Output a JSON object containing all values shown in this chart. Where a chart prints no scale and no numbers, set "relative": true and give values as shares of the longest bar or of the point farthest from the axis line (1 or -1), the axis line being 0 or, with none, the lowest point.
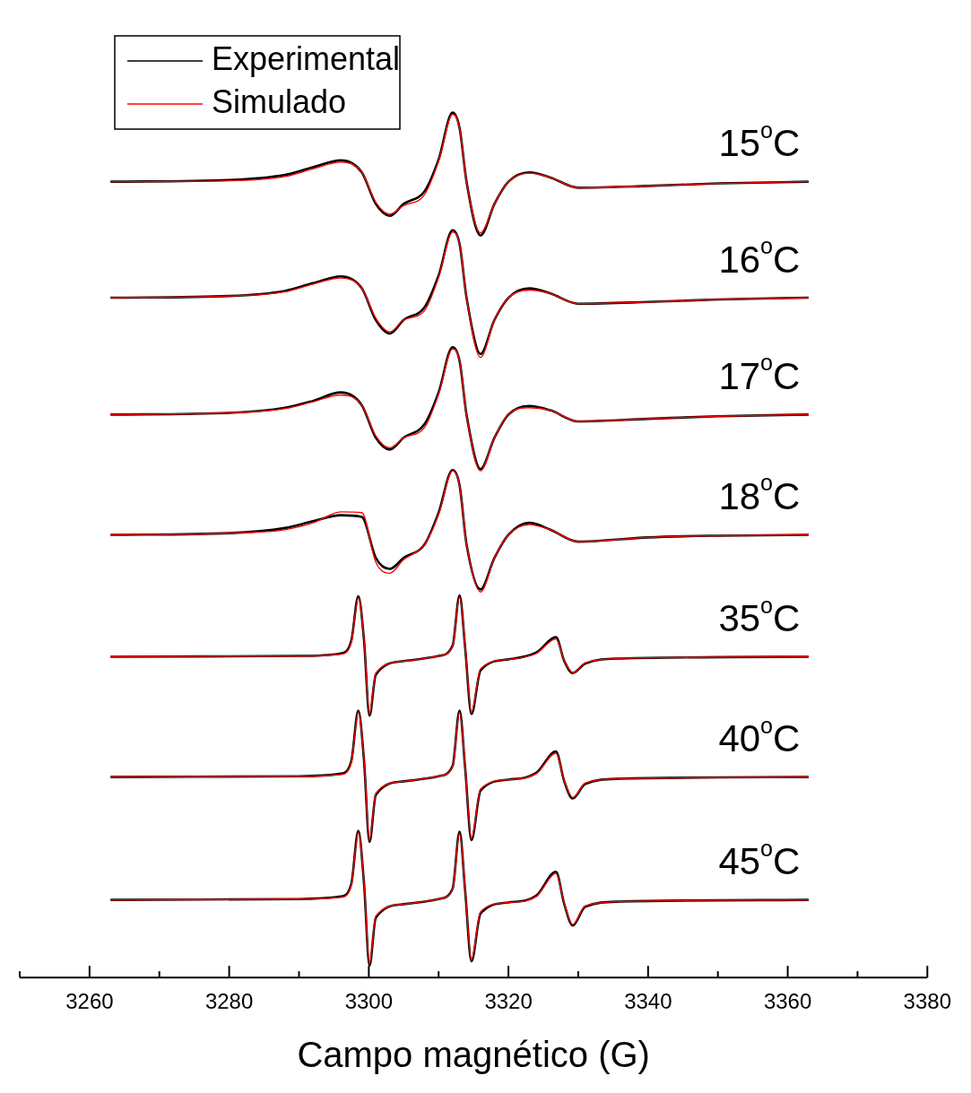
{
  "chart_data": {
    "type": "line",
    "xlabel": "Campo magnético (G)",
    "relative": true,
    "xlim": [
      3250,
      3380
    ],
    "xticks": [
      {
        "value": 3250,
        "label": null
      },
      3260,
      {
        "value": 3270,
        "label": null
      },
      3280,
      {
        "value": 3290,
        "label": null
      },
      3300,
      {
        "value": 3310,
        "label": null
      },
      3320,
      {
        "value": 3330,
        "label": null
      },
      3340,
      {
        "value": 3350,
        "label": null
      },
      3360,
      {
        "value": 3370,
        "label": null
      },
      3380
    ],
    "grid": false,
    "legend": "top left",
    "marker": "none",
    "line_style": "solid",
    "series": [
      {
        "name": "Experimental",
        "color": "#000000",
        "x": [
          3263,
          3280,
          3288,
          3292,
          3296,
          3299,
          3301,
          3303,
          3305,
          3308,
          3310,
          3312,
          3313,
          3314,
          3316,
          3318,
          3320,
          3323,
          3326,
          3330,
          3340,
          3350,
          3363
        ],
        "values": [
          0.919,
          0.921,
          0.927,
          0.936,
          0.944,
          0.93,
          0.893,
          0.879,
          0.893,
          0.908,
          0.945,
          1.0,
          0.982,
          0.919,
          0.856,
          0.893,
          0.919,
          0.93,
          0.924,
          0.912,
          0.914,
          0.917,
          0.919
        ]
      },
      {
        "name": "Simulado",
        "color": "#ff0000",
        "x": [
          3263,
          3280,
          3288,
          3292,
          3296,
          3299,
          3301,
          3303,
          3305,
          3308,
          3310,
          3312,
          3313,
          3314,
          3316,
          3318,
          3320,
          3323,
          3326,
          3330,
          3340,
          3350,
          3363
        ],
        "values": [
          0.919,
          0.92,
          0.925,
          0.934,
          0.942,
          0.93,
          0.895,
          0.881,
          0.891,
          0.904,
          0.943,
          0.998,
          0.982,
          0.919,
          0.859,
          0.893,
          0.919,
          0.929,
          0.924,
          0.912,
          0.914,
          0.917,
          0.919
        ]
      },
      {
        "color": "#000000",
        "x": [
          3263,
          3280,
          3288,
          3292,
          3296,
          3299,
          3301,
          3303,
          3305,
          3308,
          3310,
          3312,
          3313,
          3314,
          3316,
          3318,
          3320,
          3323,
          3326,
          3330,
          3340,
          3350,
          3363
        ],
        "values": [
          0.783,
          0.785,
          0.791,
          0.8,
          0.808,
          0.794,
          0.757,
          0.741,
          0.757,
          0.772,
          0.809,
          0.862,
          0.846,
          0.783,
          0.717,
          0.757,
          0.783,
          0.794,
          0.788,
          0.776,
          0.778,
          0.781,
          0.783
        ]
      },
      {
        "color": "#ff0000",
        "x": [
          3263,
          3280,
          3288,
          3292,
          3296,
          3299,
          3301,
          3303,
          3305,
          3308,
          3310,
          3312,
          3313,
          3314,
          3316,
          3318,
          3320,
          3323,
          3326,
          3330,
          3340,
          3350,
          3363
        ],
        "values": [
          0.783,
          0.785,
          0.79,
          0.799,
          0.806,
          0.794,
          0.759,
          0.743,
          0.757,
          0.768,
          0.807,
          0.86,
          0.846,
          0.783,
          0.713,
          0.757,
          0.783,
          0.792,
          0.788,
          0.776,
          0.778,
          0.781,
          0.783
        ]
      },
      {
        "color": "#000000",
        "x": [
          3263,
          3280,
          3288,
          3292,
          3296,
          3299,
          3301,
          3303,
          3305,
          3308,
          3310,
          3312,
          3313,
          3314,
          3316,
          3318,
          3320,
          3323,
          3326,
          3330,
          3340,
          3350,
          3363
        ],
        "values": [
          0.646,
          0.648,
          0.654,
          0.662,
          0.672,
          0.657,
          0.619,
          0.605,
          0.619,
          0.635,
          0.672,
          0.725,
          0.709,
          0.646,
          0.582,
          0.619,
          0.646,
          0.656,
          0.651,
          0.638,
          0.641,
          0.644,
          0.646
        ]
      },
      {
        "color": "#ff0000",
        "x": [
          3263,
          3280,
          3288,
          3292,
          3296,
          3299,
          3301,
          3303,
          3305,
          3308,
          3310,
          3312,
          3313,
          3314,
          3316,
          3318,
          3320,
          3323,
          3326,
          3330,
          3340,
          3350,
          3363
        ],
        "values": [
          0.646,
          0.648,
          0.653,
          0.661,
          0.669,
          0.657,
          0.621,
          0.607,
          0.619,
          0.631,
          0.67,
          0.723,
          0.709,
          0.646,
          0.58,
          0.619,
          0.646,
          0.654,
          0.651,
          0.638,
          0.641,
          0.644,
          0.646
        ]
      },
      {
        "color": "#000000",
        "x": [
          3263,
          3280,
          3288,
          3292,
          3296,
          3299,
          3301,
          3303,
          3305,
          3308,
          3310,
          3312,
          3313,
          3314,
          3316,
          3318,
          3320,
          3323,
          3326,
          3330,
          3340,
          3350,
          3363
        ],
        "values": [
          0.505,
          0.507,
          0.513,
          0.521,
          0.528,
          0.526,
          0.478,
          0.465,
          0.478,
          0.494,
          0.531,
          0.581,
          0.563,
          0.494,
          0.441,
          0.478,
          0.505,
          0.519,
          0.511,
          0.497,
          0.502,
          0.504,
          0.505
        ]
      },
      {
        "color": "#ff0000",
        "x": [
          3263,
          3280,
          3288,
          3292,
          3296,
          3299,
          3301,
          3303,
          3305,
          3308,
          3310,
          3312,
          3313,
          3314,
          3316,
          3318,
          3320,
          3323,
          3326,
          3330,
          3340,
          3350,
          3363
        ],
        "values": [
          0.505,
          0.507,
          0.511,
          0.519,
          0.532,
          0.531,
          0.473,
          0.46,
          0.476,
          0.494,
          0.529,
          0.58,
          0.563,
          0.494,
          0.438,
          0.478,
          0.505,
          0.517,
          0.511,
          0.497,
          0.502,
          0.504,
          0.505
        ]
      },
      {
        "color": "#000000",
        "x": [
          3263,
          3290,
          3296,
          3297.5,
          3298.5,
          3299.3,
          3300.1,
          3301,
          3305,
          3310,
          3312,
          3313,
          3313.8,
          3314.7,
          3316,
          3320,
          3324,
          3326.8,
          3328,
          3329.2,
          3331,
          3336,
          3363
        ],
        "values": [
          0.362,
          0.363,
          0.366,
          0.381,
          0.433,
          0.383,
          0.293,
          0.341,
          0.357,
          0.363,
          0.375,
          0.434,
          0.373,
          0.295,
          0.346,
          0.359,
          0.367,
          0.385,
          0.357,
          0.343,
          0.354,
          0.36,
          0.362
        ]
      },
      {
        "color": "#ff0000",
        "x": [
          3263,
          3290,
          3296,
          3297.5,
          3298.5,
          3299.3,
          3300.1,
          3301,
          3305,
          3310,
          3312,
          3313,
          3313.8,
          3314.7,
          3316,
          3320,
          3324,
          3326.8,
          3328,
          3329.2,
          3331,
          3336,
          3363
        ],
        "values": [
          0.362,
          0.363,
          0.365,
          0.379,
          0.431,
          0.385,
          0.295,
          0.343,
          0.357,
          0.363,
          0.374,
          0.432,
          0.375,
          0.297,
          0.348,
          0.359,
          0.366,
          0.383,
          0.358,
          0.343,
          0.355,
          0.36,
          0.362
        ]
      },
      {
        "color": "#000000",
        "x": [
          3263,
          3290,
          3296,
          3297.5,
          3298.5,
          3299.3,
          3300.1,
          3301,
          3305,
          3310,
          3312,
          3313,
          3313.8,
          3314.7,
          3316,
          3320,
          3324,
          3326.8,
          3328,
          3329.2,
          3331,
          3336,
          3363
        ],
        "values": [
          0.221,
          0.222,
          0.225,
          0.24,
          0.299,
          0.242,
          0.145,
          0.2,
          0.216,
          0.222,
          0.234,
          0.299,
          0.232,
          0.147,
          0.205,
          0.218,
          0.226,
          0.251,
          0.216,
          0.196,
          0.213,
          0.219,
          0.221
        ]
      },
      {
        "color": "#ff0000",
        "x": [
          3263,
          3290,
          3296,
          3297.5,
          3298.5,
          3299.3,
          3300.1,
          3301,
          3305,
          3310,
          3312,
          3313,
          3313.8,
          3314.7,
          3316,
          3320,
          3324,
          3326.8,
          3328,
          3329.2,
          3331,
          3336,
          3363
        ],
        "values": [
          0.221,
          0.222,
          0.224,
          0.238,
          0.297,
          0.244,
          0.147,
          0.202,
          0.216,
          0.222,
          0.233,
          0.297,
          0.234,
          0.149,
          0.207,
          0.218,
          0.225,
          0.249,
          0.217,
          0.197,
          0.214,
          0.219,
          0.221
        ]
      },
      {
        "color": "#000000",
        "x": [
          3263,
          3290,
          3296,
          3297.5,
          3298.5,
          3299.3,
          3300.1,
          3301,
          3305,
          3310,
          3312,
          3313,
          3313.8,
          3314.7,
          3316,
          3320,
          3324,
          3326.8,
          3328,
          3329.2,
          3331,
          3336,
          3363
        ],
        "values": [
          0.077,
          0.078,
          0.081,
          0.096,
          0.158,
          0.098,
          0.0,
          0.056,
          0.072,
          0.078,
          0.09,
          0.157,
          0.088,
          0.005,
          0.061,
          0.074,
          0.082,
          0.11,
          0.072,
          0.047,
          0.069,
          0.075,
          0.077
        ]
      },
      {
        "color": "#ff0000",
        "x": [
          3263,
          3290,
          3296,
          3297.5,
          3298.5,
          3299.3,
          3300.1,
          3301,
          3305,
          3310,
          3312,
          3313,
          3313.8,
          3314.7,
          3316,
          3320,
          3324,
          3326.8,
          3328,
          3329.2,
          3331,
          3336,
          3363
        ],
        "values": [
          0.077,
          0.078,
          0.08,
          0.094,
          0.156,
          0.1,
          0.002,
          0.058,
          0.072,
          0.078,
          0.089,
          0.155,
          0.09,
          0.007,
          0.063,
          0.074,
          0.081,
          0.108,
          0.073,
          0.048,
          0.07,
          0.075,
          0.077
        ]
      }
    ],
    "annotations": [
      "15$^{o}$C",
      "16$^{o}$C",
      "17$^{o}$C",
      "18$^{o}$C",
      "35$^{o}$C",
      "40$^{o}$C",
      "45$^{o}$C"
    ]
  }
}
